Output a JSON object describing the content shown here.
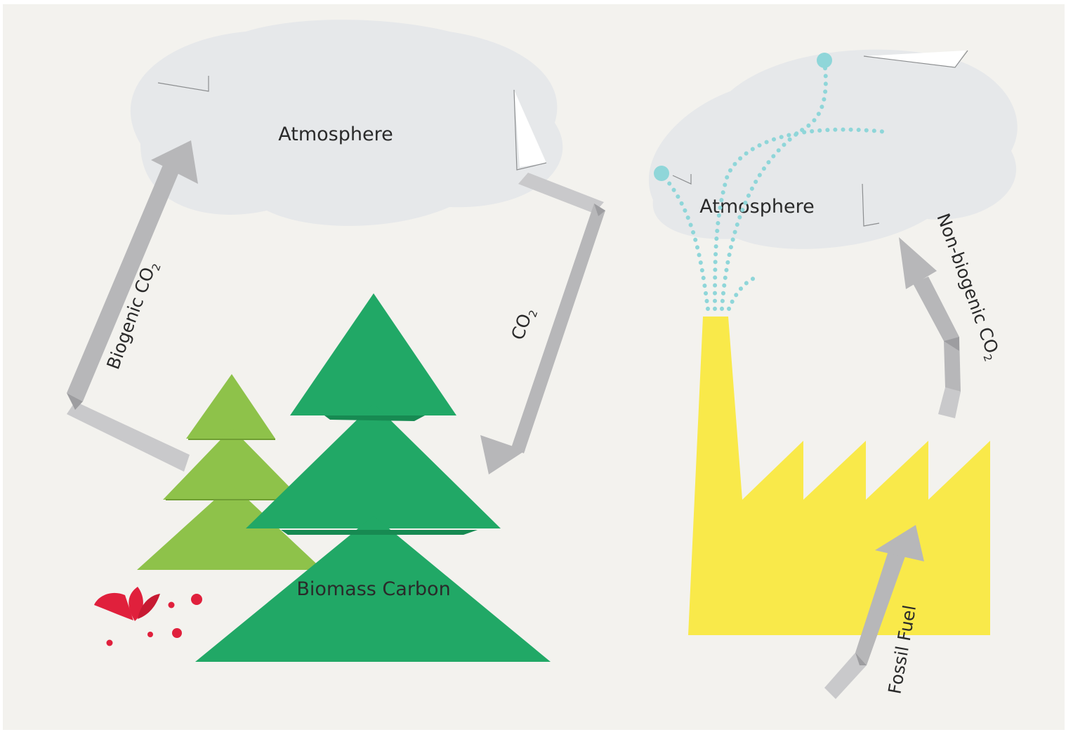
{
  "left_cycle": {
    "atmosphere_label": "Atmosphere",
    "biogenic_arrow": {
      "main": "Biogenic CO",
      "sub": "2"
    },
    "uptake_arrow": {
      "main": "CO",
      "sub": "2"
    },
    "biomass_label": "Biomass Carbon"
  },
  "right_cycle": {
    "atmosphere_label": "Atmosphere",
    "non_biogenic_arrow": {
      "main": "Non-biogenic CO",
      "sub": "2"
    },
    "fossil_arrow": {
      "main": "Fossil Fuel"
    }
  },
  "colors": {
    "background": "#f3f2ee",
    "cloud": "#e6e8ea",
    "arrow": "#b7b7b9",
    "arrow_dark": "#9d9da0",
    "tree_light": "#8ec24a",
    "tree_dark": "#21a866",
    "factory": "#f9e94a",
    "smoke": "#8fd6d9",
    "droplet": "#e0203c"
  }
}
